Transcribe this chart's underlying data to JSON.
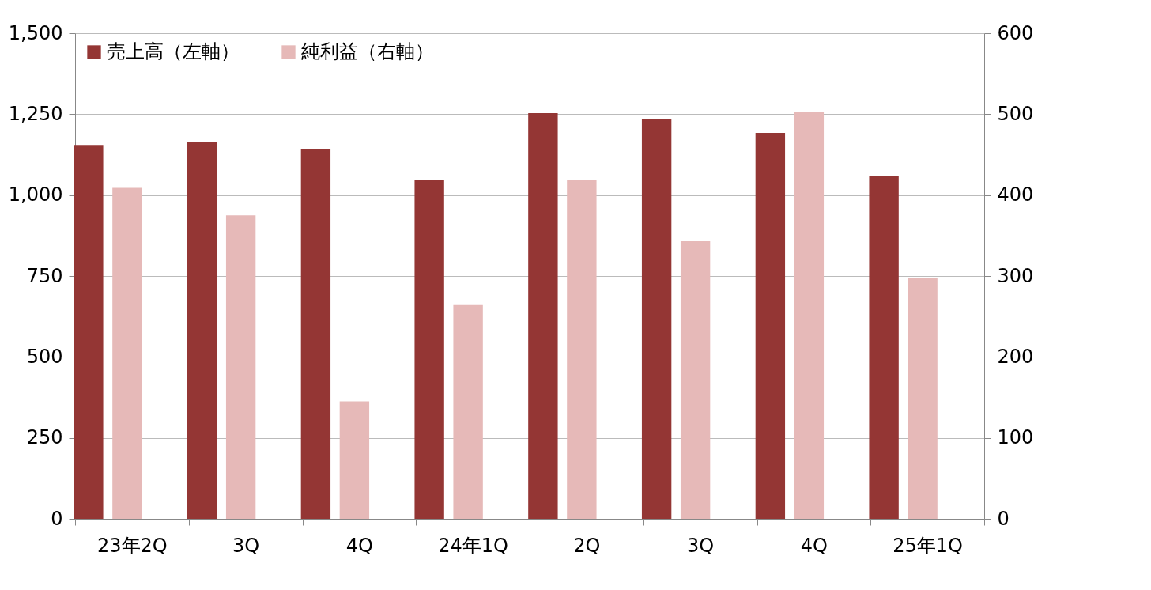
{
  "chart_data": {
    "type": "bar",
    "categories": [
      "23年2Q",
      "3Q",
      "4Q",
      "24年1Q",
      "2Q",
      "3Q",
      "4Q",
      "25年1Q"
    ],
    "series": [
      {
        "name": "売上高（左軸）",
        "color": "#943634",
        "axis": "y",
        "values": [
          1155,
          1163,
          1141,
          1048,
          1253,
          1236,
          1192,
          1060
        ]
      },
      {
        "name": "純利益（右軸）",
        "color": "#e6b9b8",
        "axis": "y2",
        "values": [
          409,
          375,
          145,
          264,
          419,
          343,
          503,
          298
        ]
      }
    ],
    "ylim": [
      0,
      1500
    ],
    "yticks": [
      0,
      250,
      500,
      750,
      {
        "value": 1000,
        "label": "1,000"
      },
      {
        "value": 1250,
        "label": "1,250"
      },
      {
        "value": 1500,
        "label": "1,500"
      }
    ],
    "y2lim": [
      0,
      600
    ],
    "y2ticks": [
      0,
      100,
      200,
      300,
      400,
      500,
      600
    ],
    "grid": "y",
    "legend": "top left"
  }
}
